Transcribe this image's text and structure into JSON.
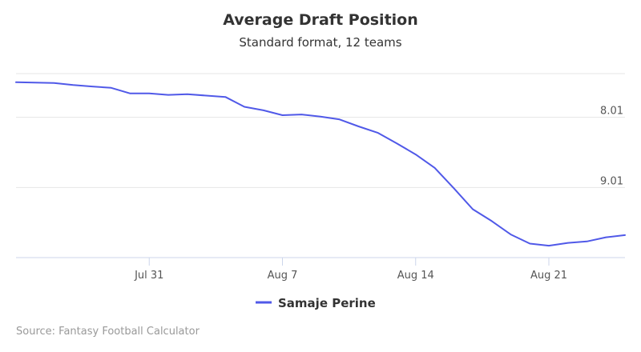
{
  "chart_data": {
    "type": "line",
    "title": "Average Draft Position",
    "subtitle": "Standard format, 12 teams",
    "xlabel": "",
    "ylabel": "",
    "x_tick_labels": [
      "Jul 31",
      "Aug 7",
      "Aug 14",
      "Aug 21"
    ],
    "x_tick_days": [
      31,
      38,
      45,
      52
    ],
    "y_tick_labels": [
      "8.01",
      "9.01"
    ],
    "y_tick_values": [
      8.01,
      9.01
    ],
    "ylim": [
      7.25,
      10.01
    ],
    "y_reversed": true,
    "xlim": [
      24,
      56
    ],
    "grid": true,
    "legend_position": "bottom-center",
    "series": [
      {
        "name": "Samaje Perine",
        "color": "#5059e8",
        "x": [
          24,
          26,
          27,
          28,
          29,
          30,
          31,
          32,
          33,
          34,
          35,
          36,
          37,
          38,
          39,
          40,
          41,
          42,
          43,
          44,
          45,
          46,
          47,
          48,
          49,
          50,
          51,
          52,
          53,
          54,
          55,
          56
        ],
        "y": [
          7.51,
          7.52,
          7.55,
          7.57,
          7.59,
          7.67,
          7.67,
          7.69,
          7.68,
          7.7,
          7.72,
          7.86,
          7.91,
          7.98,
          7.97,
          8.0,
          8.04,
          8.14,
          8.23,
          8.38,
          8.54,
          8.73,
          9.02,
          9.32,
          9.49,
          9.68,
          9.81,
          9.84,
          9.8,
          9.78,
          9.72,
          9.69
        ]
      }
    ]
  },
  "credits": "Source: Fantasy Football Calculator"
}
